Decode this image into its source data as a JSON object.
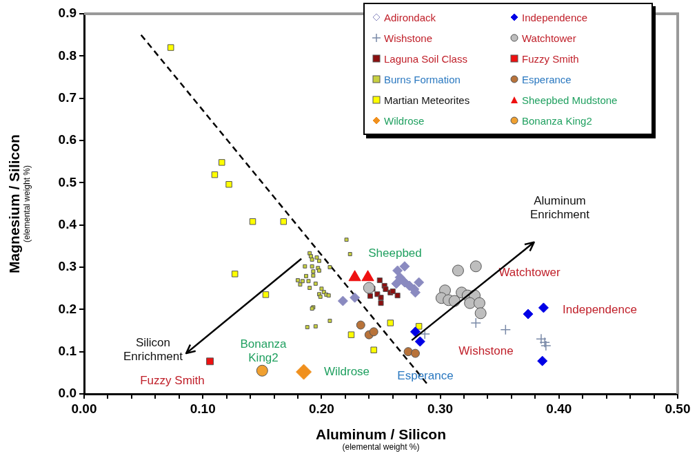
{
  "chart_data": {
    "type": "scatter",
    "xlabel": "Aluminum / Silicon\n(elemental weight %)",
    "ylabel": "Magnesium / Silicon\n(elemental weight %)",
    "xlim": [
      0,
      0.5
    ],
    "ylim": [
      0,
      0.9
    ],
    "xticks": [
      {
        "value": 0,
        "label": "0.00"
      },
      {
        "value": 0.02,
        "label": null
      },
      {
        "value": 0.04,
        "label": null
      },
      {
        "value": 0.06,
        "label": null
      },
      {
        "value": 0.08,
        "label": null
      },
      {
        "value": 0.1,
        "label": "0.10"
      },
      {
        "value": 0.12,
        "label": null
      },
      {
        "value": 0.14,
        "label": null
      },
      {
        "value": 0.16,
        "label": null
      },
      {
        "value": 0.18,
        "label": null
      },
      {
        "value": 0.2,
        "label": "0.20"
      },
      {
        "value": 0.22,
        "label": null
      },
      {
        "value": 0.24,
        "label": null
      },
      {
        "value": 0.26,
        "label": null
      },
      {
        "value": 0.28,
        "label": null
      },
      {
        "value": 0.3,
        "label": "0.30"
      },
      {
        "value": 0.32,
        "label": null
      },
      {
        "value": 0.34,
        "label": null
      },
      {
        "value": 0.36,
        "label": null
      },
      {
        "value": 0.38,
        "label": null
      },
      {
        "value": 0.4,
        "label": "0.40"
      },
      {
        "value": 0.42,
        "label": null
      },
      {
        "value": 0.44,
        "label": null
      },
      {
        "value": 0.46,
        "label": null
      },
      {
        "value": 0.48,
        "label": null
      },
      {
        "value": 0.5,
        "label": "0.50"
      }
    ],
    "yticks": [
      {
        "value": 0,
        "label": "0.0"
      },
      {
        "value": 0.1,
        "label": "0.1"
      },
      {
        "value": 0.2,
        "label": "0.2"
      },
      {
        "value": 0.3,
        "label": "0.3"
      },
      {
        "value": 0.4,
        "label": "0.4"
      },
      {
        "value": 0.5,
        "label": "0.5"
      },
      {
        "value": 0.6,
        "label": "0.6"
      },
      {
        "value": 0.7,
        "label": "0.7"
      },
      {
        "value": 0.8,
        "label": "0.8"
      },
      {
        "value": 0.9,
        "label": "0.9"
      }
    ],
    "grid": false,
    "legend": "top right",
    "series": [
      {
        "name": "Adirondack",
        "color": "#8a8ac0",
        "marker": "diamond",
        "x": [
          0.27,
          0.264,
          0.266,
          0.27,
          0.274,
          0.278,
          0.282,
          0.279,
          0.218,
          0.228,
          0.263
        ],
        "values": [
          0.302,
          0.292,
          0.276,
          0.264,
          0.256,
          0.248,
          0.264,
          0.24,
          0.22,
          0.228,
          0.261
        ]
      },
      {
        "name": "Independence",
        "color": "#0000e6",
        "marker": "diamond",
        "x": [
          0.374,
          0.387,
          0.386,
          0.279,
          0.283
        ],
        "values": [
          0.189,
          0.204,
          0.078,
          0.147,
          0.124
        ]
      },
      {
        "name": "Wishstone",
        "color": "#7a8aa8",
        "marker": "cross",
        "x": [
          0.287,
          0.33,
          0.355,
          0.385,
          0.388,
          0.389
        ],
        "values": [
          0.142,
          0.168,
          0.152,
          0.13,
          0.122,
          0.114
        ]
      },
      {
        "name": "Watchtower",
        "color": "#bebebe",
        "marker": "circle",
        "x": [
          0.315,
          0.33,
          0.304,
          0.301,
          0.307,
          0.312,
          0.318,
          0.323,
          0.329,
          0.325,
          0.333,
          0.334,
          0.24
        ],
        "values": [
          0.292,
          0.302,
          0.245,
          0.227,
          0.222,
          0.22,
          0.24,
          0.233,
          0.233,
          0.215,
          0.215,
          0.191,
          0.251
        ]
      },
      {
        "name": "Laguna Soil Class",
        "color": "#8b1010",
        "marker": "square",
        "x": [
          0.249,
          0.253,
          0.243,
          0.254,
          0.258,
          0.247,
          0.264,
          0.25,
          0.241,
          0.25,
          0.26
        ],
        "values": [
          0.269,
          0.256,
          0.249,
          0.248,
          0.24,
          0.236,
          0.233,
          0.228,
          0.232,
          0.215,
          0.243
        ]
      },
      {
        "name": "Fuzzy Smith",
        "color": "#ee1111",
        "marker": "square",
        "x": [
          0.106
        ],
        "values": [
          0.077
        ]
      },
      {
        "name": "Burns Formation",
        "color": "#c8d040",
        "marker": "square",
        "x": [
          0.221,
          0.224,
          0.19,
          0.191,
          0.196,
          0.192,
          0.198,
          0.186,
          0.192,
          0.197,
          0.207,
          0.193,
          0.198,
          0.187,
          0.193,
          0.18,
          0.184,
          0.189,
          0.195,
          0.182,
          0.19,
          0.2,
          0.202,
          0.198,
          0.204,
          0.199,
          0.206,
          0.193,
          0.192,
          0.207,
          0.188,
          0.195
        ],
        "values": [
          0.365,
          0.331,
          0.333,
          0.326,
          0.323,
          0.318,
          0.315,
          0.302,
          0.302,
          0.298,
          0.3,
          0.29,
          0.292,
          0.279,
          0.28,
          0.269,
          0.267,
          0.267,
          0.261,
          0.259,
          0.251,
          0.249,
          0.241,
          0.236,
          0.235,
          0.23,
          0.233,
          0.205,
          0.202,
          0.173,
          0.158,
          0.16
        ]
      },
      {
        "name": "Esperance",
        "color": "#b8733a",
        "marker": "circle",
        "x": [
          0.233,
          0.24,
          0.244,
          0.273,
          0.279
        ],
        "values": [
          0.163,
          0.14,
          0.147,
          0.1,
          0.096
        ]
      },
      {
        "name": "Martian Meteorites",
        "color": "#ffff00",
        "marker": "square",
        "x": [
          0.073,
          0.116,
          0.11,
          0.122,
          0.142,
          0.168,
          0.127,
          0.153,
          0.258,
          0.282,
          0.225,
          0.244
        ],
        "values": [
          0.82,
          0.548,
          0.519,
          0.496,
          0.408,
          0.408,
          0.284,
          0.235,
          0.168,
          0.16,
          0.14,
          0.104
        ]
      },
      {
        "name": "Sheepbed Mudstone",
        "color": "#ee1111",
        "marker": "triangle",
        "x": [
          0.228,
          0.239
        ],
        "values": [
          0.276,
          0.276
        ]
      },
      {
        "name": "Wildrose",
        "color": "#f0901e",
        "marker": "diamond",
        "x": [
          0.185
        ],
        "values": [
          0.052
        ]
      },
      {
        "name": "Bonanza King2",
        "color": "#f0a030",
        "marker": "circle",
        "x": [
          0.15
        ],
        "values": [
          0.055
        ]
      },
      {
        "type": "line",
        "color": "#000000",
        "line_style": "dashed",
        "marker": "none",
        "x": [
          0.048,
          0.29
        ],
        "values": [
          0.85,
          0.02
        ]
      }
    ],
    "annotations": [
      "Sheepbed",
      "Watchtower",
      "Independence",
      "Wishstone",
      "Esperance",
      "Wildrose",
      "Bonanza\nKing2",
      "Fuzzy Smith",
      "Silicon\nEnrichment",
      "Aluminum\nEnrichment"
    ]
  }
}
